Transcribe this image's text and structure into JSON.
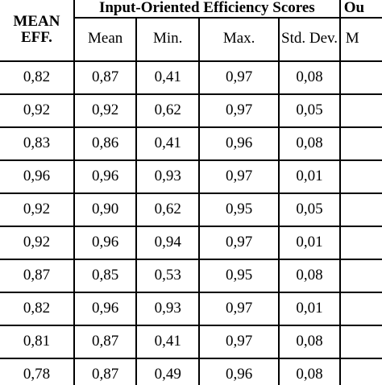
{
  "table": {
    "mean_eff_header": "MEAN EFF.",
    "group_header_input": "Input-Oriented Efficiency Scores",
    "group_header_output": "Ou",
    "sub_headers": [
      "Mean",
      "Min.",
      "Max.",
      "Std. Dev.",
      "M"
    ],
    "rows": [
      [
        "0,82",
        "0,87",
        "0,41",
        "0,97",
        "0,08",
        ""
      ],
      [
        "0,92",
        "0,92",
        "0,62",
        "0,97",
        "0,05",
        ""
      ],
      [
        "0,83",
        "0,86",
        "0,41",
        "0,96",
        "0,08",
        ""
      ],
      [
        "0,96",
        "0,96",
        "0,93",
        "0,97",
        "0,01",
        ""
      ],
      [
        "0,92",
        "0,90",
        "0,62",
        "0,95",
        "0,05",
        ""
      ],
      [
        "0,92",
        "0,96",
        "0,94",
        "0,97",
        "0,01",
        ""
      ],
      [
        "0,87",
        "0,85",
        "0,53",
        "0,95",
        "0,08",
        ""
      ],
      [
        "0,82",
        "0,96",
        "0,93",
        "0,97",
        "0,01",
        ""
      ],
      [
        "0,81",
        "0,87",
        "0,41",
        "0,97",
        "0,08",
        ""
      ],
      [
        "0,78",
        "0,87",
        "0,49",
        "0,96",
        "0,08",
        ""
      ]
    ]
  }
}
